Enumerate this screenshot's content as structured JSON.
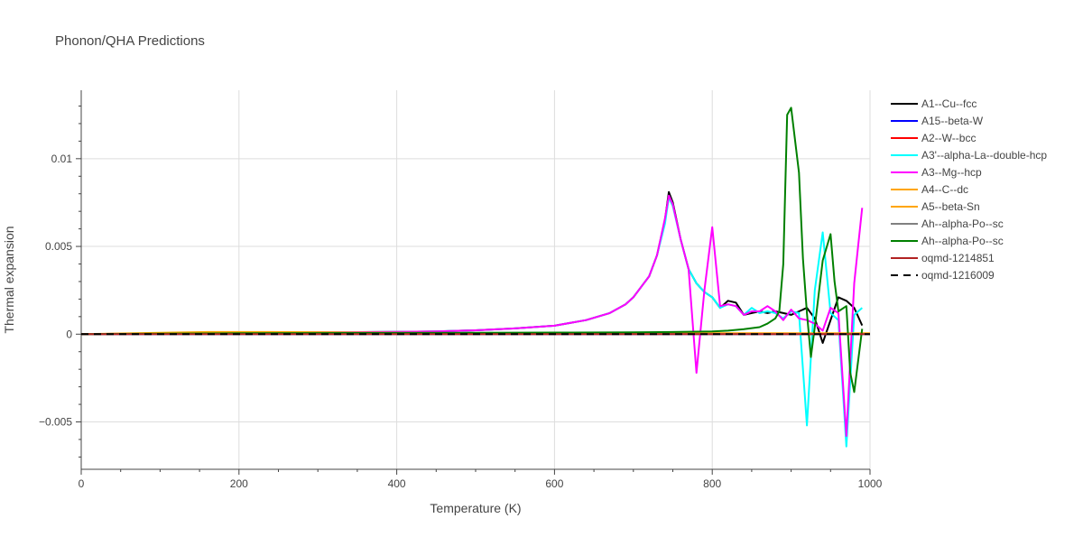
{
  "chart_data": {
    "type": "line",
    "title": "Phonon/QHA Predictions",
    "xlabel": "Temperature (K)",
    "ylabel": "Thermal expansion",
    "xlim": [
      0,
      1000
    ],
    "ylim": [
      -0.0077,
      0.0139
    ],
    "x_ticks": [
      {
        "value": 0,
        "label": "0"
      },
      {
        "value": 200,
        "label": "200"
      },
      {
        "value": 400,
        "label": "400"
      },
      {
        "value": 600,
        "label": "600"
      },
      {
        "value": 800,
        "label": "800"
      },
      {
        "value": 1000,
        "label": "1000"
      }
    ],
    "y_ticks": [
      {
        "value": -0.005,
        "label": "−0.005"
      },
      {
        "value": 0,
        "label": "0"
      },
      {
        "value": 0.005,
        "label": "0.005"
      },
      {
        "value": 0.01,
        "label": "0.01"
      }
    ],
    "grid": true,
    "legend_position": "right",
    "series": [
      {
        "name": "A1--Cu--fcc",
        "color": "#000000",
        "dash": "solid",
        "x": [
          0,
          100,
          200,
          300,
          400,
          450,
          500,
          550,
          600,
          640,
          670,
          690,
          700,
          710,
          720,
          730,
          740,
          745,
          750,
          760,
          770,
          780,
          790,
          800,
          810,
          820,
          830,
          840,
          850,
          860,
          870,
          880,
          890,
          900,
          910,
          920,
          930,
          940,
          950,
          960,
          970,
          980,
          990
        ],
        "y": [
          0,
          5e-05,
          8e-05,
          0.0001,
          0.00013,
          0.00016,
          0.00022,
          0.00033,
          0.00048,
          0.0008,
          0.0012,
          0.0017,
          0.0021,
          0.0027,
          0.0033,
          0.0045,
          0.0065,
          0.0081,
          0.0075,
          0.0054,
          0.0037,
          0.0029,
          0.0024,
          0.0021,
          0.0015,
          0.0019,
          0.0018,
          0.0011,
          0.0012,
          0.0013,
          0.0012,
          0.0013,
          0.0012,
          0.0011,
          0.0013,
          0.0015,
          0.0009,
          -0.0005,
          0.0008,
          0.0021,
          0.0019,
          0.0015,
          0.0005
        ]
      },
      {
        "name": "A15--beta-W",
        "color": "#0000ff",
        "dash": "solid",
        "x": [
          0,
          1000
        ],
        "y": [
          0,
          0
        ]
      },
      {
        "name": "A2--W--bcc",
        "color": "#ff0000",
        "dash": "solid",
        "x": [
          0,
          100,
          200,
          300,
          1000
        ],
        "y": [
          0,
          2e-05,
          3e-05,
          3e-05,
          2e-05
        ]
      },
      {
        "name": "A3'--alpha-La--double-hcp",
        "color": "#00ffff",
        "dash": "solid",
        "x": [
          0,
          100,
          200,
          300,
          400,
          450,
          500,
          550,
          600,
          640,
          670,
          690,
          700,
          710,
          720,
          730,
          740,
          745,
          750,
          760,
          770,
          780,
          790,
          800,
          810,
          820,
          830,
          840,
          850,
          860,
          870,
          880,
          890,
          900,
          910,
          920,
          930,
          940,
          950,
          960,
          970,
          980,
          990
        ],
        "y": [
          0,
          5e-05,
          8e-05,
          0.0001,
          0.00013,
          0.00016,
          0.00022,
          0.00033,
          0.00048,
          0.0008,
          0.0012,
          0.0017,
          0.0021,
          0.0027,
          0.0033,
          0.0045,
          0.0063,
          0.0078,
          0.0073,
          0.0054,
          0.0037,
          0.0029,
          0.0024,
          0.0021,
          0.0015,
          0.0017,
          0.0016,
          0.0011,
          0.0015,
          0.0012,
          0.0013,
          0.0012,
          0.0009,
          0.0013,
          0.0012,
          -0.0052,
          0.0025,
          0.0058,
          0.0012,
          0.0008,
          -0.0064,
          0.0011,
          0.0015
        ]
      },
      {
        "name": "A3--Mg--hcp",
        "color": "#ff00ff",
        "dash": "solid",
        "x": [
          0,
          100,
          200,
          300,
          400,
          450,
          500,
          550,
          600,
          640,
          670,
          690,
          700,
          710,
          720,
          730,
          740,
          745,
          750,
          760,
          770,
          780,
          790,
          800,
          810,
          820,
          830,
          840,
          850,
          860,
          870,
          880,
          890,
          900,
          910,
          920,
          930,
          940,
          950,
          960,
          970,
          980,
          990
        ],
        "y": [
          0,
          5e-05,
          8e-05,
          0.0001,
          0.00013,
          0.00016,
          0.00022,
          0.00033,
          0.00048,
          0.0008,
          0.0012,
          0.0017,
          0.0021,
          0.0027,
          0.0033,
          0.0045,
          0.0066,
          0.0079,
          0.0074,
          0.0054,
          0.0037,
          -0.0022,
          0.0025,
          0.0061,
          0.0016,
          0.0017,
          0.0016,
          0.0011,
          0.0013,
          0.0013,
          0.0016,
          0.0013,
          0.0008,
          0.0014,
          0.0009,
          0.0008,
          0.0006,
          0.0002,
          0.0015,
          0.0012,
          -0.0058,
          0.0029,
          0.0072
        ]
      },
      {
        "name": "A4--C--dc",
        "color": "#ffa500",
        "dash": "solid",
        "x": [
          0,
          100,
          160,
          240,
          320,
          400,
          500,
          600,
          1000
        ],
        "y": [
          0,
          8e-05,
          0.00012,
          0.00012,
          0.0001,
          8e-05,
          6e-05,
          5e-05,
          4e-05
        ]
      },
      {
        "name": "A5--beta-Sn",
        "color": "#ffa500",
        "dash": "solid",
        "x": [
          0,
          100,
          200,
          300,
          1000
        ],
        "y": [
          0,
          4e-05,
          6e-05,
          6e-05,
          5e-05
        ]
      },
      {
        "name": "Ah--alpha-Po--sc",
        "color": "#808080",
        "dash": "solid",
        "x": [
          0,
          1000
        ],
        "y": [
          0,
          0
        ]
      },
      {
        "name": "Ah--alpha-Po--sc",
        "color": "#008000",
        "dash": "solid",
        "x": [
          0,
          100,
          200,
          300,
          400,
          500,
          600,
          700,
          750,
          800,
          820,
          840,
          860,
          870,
          880,
          885,
          890,
          895,
          900,
          910,
          915,
          920,
          925,
          930,
          940,
          950,
          955,
          960,
          970,
          975,
          980,
          985,
          990
        ],
        "y": [
          0,
          3e-05,
          5e-05,
          6e-05,
          7e-05,
          8e-05,
          9e-05,
          0.0001,
          0.00012,
          0.00016,
          0.0002,
          0.00028,
          0.0004,
          0.0006,
          0.0009,
          0.0013,
          0.004,
          0.0125,
          0.0129,
          0.0092,
          0.0043,
          0.0012,
          -0.0013,
          0.0004,
          0.0042,
          0.0057,
          0.003,
          0.0013,
          0.0016,
          -0.0022,
          -0.0033,
          -0.0015,
          0.0003
        ]
      },
      {
        "name": "oqmd-1214851",
        "color": "#b22222",
        "dash": "solid",
        "x": [
          0,
          1000
        ],
        "y": [
          0,
          0
        ]
      },
      {
        "name": "oqmd-1216009",
        "color": "#000000",
        "dash": "dashed",
        "x": [
          0,
          1000
        ],
        "y": [
          0,
          0
        ]
      }
    ]
  }
}
